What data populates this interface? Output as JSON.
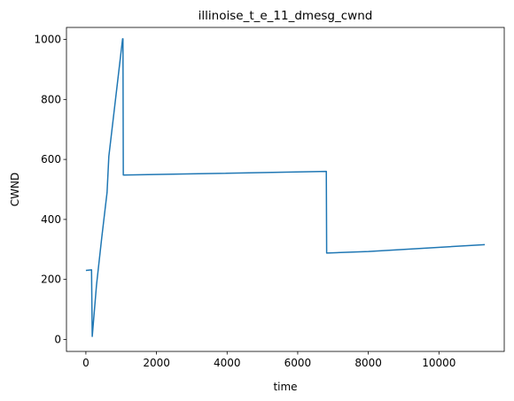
{
  "chart_data": {
    "type": "line",
    "title": "illinoise_t_e_11_dmesg_cwnd",
    "xlabel": "time",
    "ylabel": "CWND",
    "xlim": [
      -550,
      11850
    ],
    "ylim": [
      -40,
      1040
    ],
    "xticks": [
      0,
      2000,
      4000,
      6000,
      8000,
      10000
    ],
    "yticks": [
      0,
      200,
      400,
      600,
      800,
      1000
    ],
    "grid": false,
    "series": [
      {
        "color": "#1f77b4",
        "x": [
          0,
          150,
          160,
          180,
          300,
          450,
          600,
          650,
          1040,
          1050,
          1060,
          3000,
          6800,
          6810,
          6820,
          8000,
          11300
        ],
        "y": [
          230,
          232,
          232,
          10,
          180,
          340,
          490,
          610,
          1002,
          1002,
          548,
          552,
          560,
          560,
          288,
          293,
          316
        ]
      }
    ]
  }
}
